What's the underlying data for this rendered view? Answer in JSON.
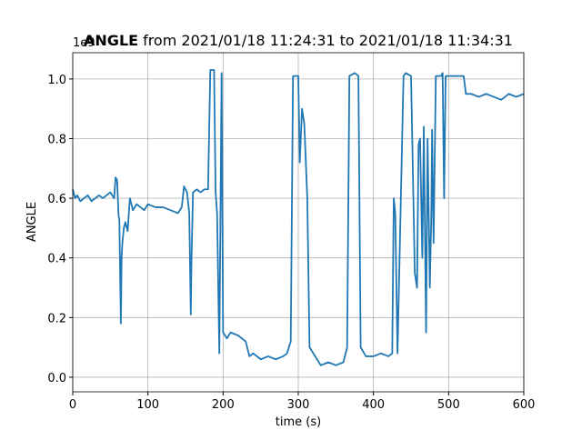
{
  "chart_data": {
    "type": "line",
    "title_bold": "ANGLE",
    "title_rest": "from 2021/01/18 11:24:31 to 2021/01/18 11:34:31",
    "x_label": "time (s)",
    "y_label": "ANGLE",
    "y_offset_text": "1e9",
    "x": [
      0,
      3,
      6,
      10,
      15,
      20,
      25,
      30,
      35,
      40,
      45,
      50,
      55,
      57,
      59,
      61,
      62,
      64,
      65,
      66,
      68,
      70,
      73,
      76,
      80,
      85,
      90,
      95,
      100,
      110,
      120,
      130,
      140,
      145,
      148,
      152,
      155,
      157,
      158,
      160,
      165,
      170,
      175,
      180,
      183,
      188,
      190,
      192,
      195,
      198,
      200,
      205,
      210,
      220,
      230,
      235,
      240,
      250,
      260,
      270,
      280,
      285,
      290,
      293,
      300,
      302,
      305,
      308,
      312,
      315,
      320,
      330,
      340,
      350,
      360,
      365,
      368,
      375,
      380,
      383,
      390,
      400,
      410,
      420,
      425,
      427,
      429,
      432,
      440,
      443,
      450,
      452,
      455,
      458,
      460,
      462,
      465,
      467,
      470,
      472,
      475,
      477,
      478,
      480,
      483,
      490,
      492,
      494,
      496,
      500,
      510,
      520,
      523,
      530,
      540,
      550,
      560,
      570,
      580,
      590,
      600
    ],
    "series": [
      {
        "name": "ANGLE",
        "color": "#1f77b4",
        "values": [
          0.63,
          0.6,
          0.61,
          0.59,
          0.6,
          0.61,
          0.59,
          0.6,
          0.61,
          0.6,
          0.61,
          0.62,
          0.6,
          0.67,
          0.66,
          0.54,
          0.53,
          0.18,
          0.4,
          0.45,
          0.5,
          0.52,
          0.49,
          0.6,
          0.56,
          0.58,
          0.57,
          0.56,
          0.58,
          0.57,
          0.57,
          0.56,
          0.55,
          0.57,
          0.64,
          0.62,
          0.55,
          0.21,
          0.4,
          0.62,
          0.63,
          0.62,
          0.63,
          0.63,
          1.03,
          1.03,
          0.62,
          0.55,
          0.08,
          1.02,
          0.15,
          0.13,
          0.15,
          0.14,
          0.12,
          0.07,
          0.08,
          0.06,
          0.07,
          0.06,
          0.07,
          0.08,
          0.12,
          1.01,
          1.01,
          0.72,
          0.9,
          0.85,
          0.6,
          0.1,
          0.08,
          0.04,
          0.05,
          0.04,
          0.05,
          0.1,
          1.01,
          1.02,
          1.01,
          0.1,
          0.07,
          0.07,
          0.08,
          0.07,
          0.08,
          0.6,
          0.55,
          0.08,
          1.01,
          1.02,
          1.01,
          0.75,
          0.35,
          0.3,
          0.78,
          0.8,
          0.4,
          0.84,
          0.15,
          0.8,
          0.3,
          0.55,
          0.83,
          0.45,
          1.01,
          1.01,
          1.02,
          0.6,
          1.01,
          1.01,
          1.01,
          1.01,
          0.95,
          0.95,
          0.94,
          0.95,
          0.94,
          0.93,
          0.95,
          0.94,
          0.95
        ]
      }
    ],
    "xlim": [
      0,
      600
    ],
    "xticks": [
      0,
      100,
      200,
      300,
      400,
      500,
      600
    ],
    "ylim": [
      -0.049,
      1.088
    ],
    "yticks": [
      {
        "value": 0,
        "label": "0.0"
      },
      0.2,
      0.4,
      0.6,
      0.8,
      {
        "value": 1,
        "label": "1.0"
      }
    ],
    "grid": true
  }
}
